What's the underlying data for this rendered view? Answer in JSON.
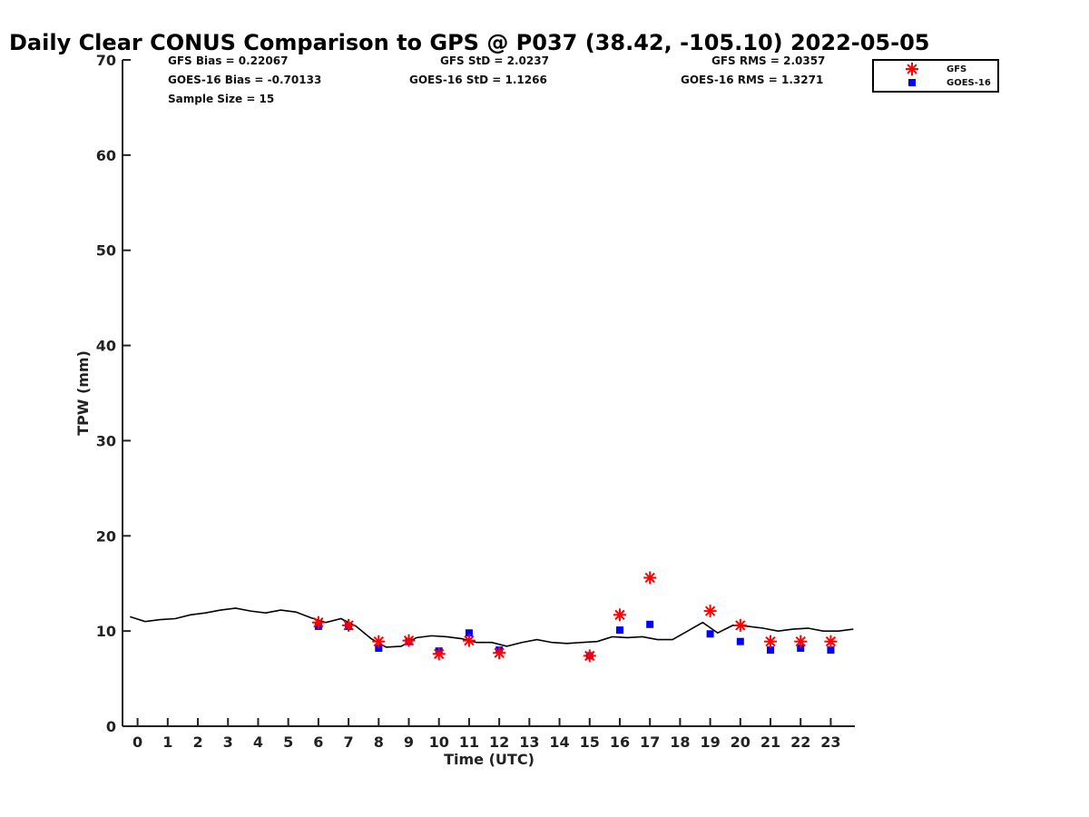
{
  "chart_data": {
    "type": "scatter",
    "title": "Daily Clear CONUS Comparison to GPS @ P037 (38.42, -105.10) 2022-05-05",
    "xlabel": "Time (UTC)",
    "ylabel": "TPW (mm)",
    "xlim": [
      -0.5,
      23.8
    ],
    "ylim": [
      0,
      70
    ],
    "xticks": [
      0,
      1,
      2,
      3,
      4,
      5,
      6,
      7,
      8,
      9,
      10,
      11,
      12,
      13,
      14,
      15,
      16,
      17,
      18,
      19,
      20,
      21,
      22,
      23
    ],
    "yticks": [
      0,
      10,
      20,
      30,
      40,
      50,
      60,
      70
    ],
    "grid": false,
    "legend_position": "top-right",
    "stats": {
      "gfs_bias": "GFS Bias = 0.22067",
      "gfs_std": "GFS StD = 2.0237",
      "gfs_rms": "GFS RMS = 2.0357",
      "goes_bias": "GOES-16 Bias = -0.70133",
      "goes_std": "GOES-16 StD = 1.1266",
      "goes_rms": "GOES-16 RMS = 1.3271",
      "sample_size": "Sample Size = 15"
    },
    "series": [
      {
        "name": "GFS",
        "marker": "asterisk",
        "color": "#ff0000",
        "x": [
          6,
          7,
          8,
          9,
          10,
          11,
          12,
          15,
          16,
          17,
          19,
          20,
          21,
          22,
          23
        ],
        "y": [
          10.9,
          10.6,
          8.9,
          9.0,
          7.6,
          9.0,
          7.7,
          7.4,
          11.7,
          15.6,
          12.1,
          10.6,
          8.9,
          8.9,
          8.9
        ]
      },
      {
        "name": "GOES-16",
        "marker": "square",
        "color": "#0000ff",
        "x": [
          6,
          7,
          8,
          9,
          10,
          11,
          12,
          15,
          16,
          17,
          19,
          20,
          21,
          22,
          23
        ],
        "y": [
          10.5,
          10.5,
          8.2,
          8.9,
          7.9,
          9.8,
          8.0,
          7.4,
          10.1,
          10.7,
          9.7,
          8.9,
          8.0,
          8.2,
          8.0
        ]
      },
      {
        "marker": "line",
        "color": "#000000",
        "x": [
          -0.25,
          0.25,
          0.75,
          1.25,
          1.75,
          2.25,
          2.75,
          3.25,
          3.75,
          4.25,
          4.75,
          5.25,
          5.75,
          6.25,
          6.75,
          7.25,
          7.75,
          8.25,
          8.75,
          9.25,
          9.75,
          10.25,
          10.75,
          11.25,
          11.75,
          12.25,
          12.75,
          13.25,
          13.75,
          14.25,
          14.75,
          15.25,
          15.75,
          16.25,
          16.75,
          17.25,
          17.75,
          18.25,
          18.75,
          19.25,
          19.75,
          20.25,
          20.75,
          21.25,
          21.75,
          22.25,
          22.75,
          23.25,
          23.75
        ],
        "y": [
          11.5,
          11.0,
          11.2,
          11.3,
          11.7,
          11.9,
          12.2,
          12.4,
          12.1,
          11.9,
          12.2,
          12.0,
          11.4,
          10.9,
          11.3,
          10.5,
          9.2,
          8.3,
          8.4,
          9.3,
          9.5,
          9.4,
          9.2,
          8.8,
          8.8,
          8.4,
          8.8,
          9.1,
          8.8,
          8.7,
          8.8,
          8.9,
          9.4,
          9.3,
          9.4,
          9.1,
          9.1,
          10.0,
          10.9,
          9.8,
          10.6,
          10.5,
          10.3,
          10.0,
          10.2,
          10.3,
          10.0,
          10.0,
          10.2
        ]
      }
    ]
  }
}
